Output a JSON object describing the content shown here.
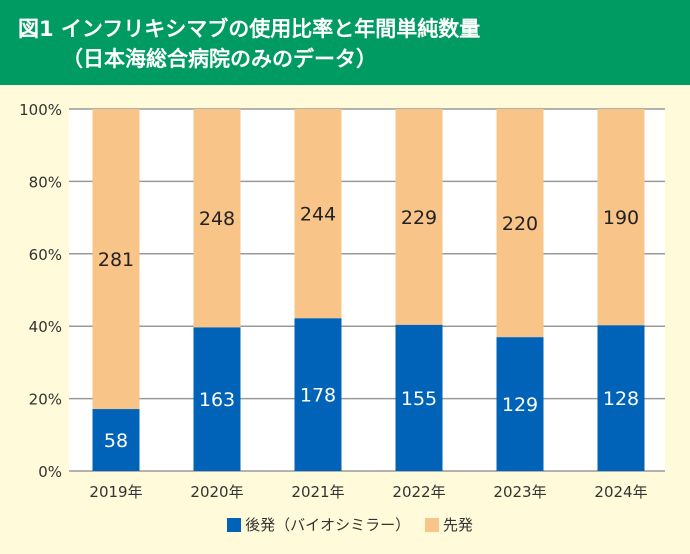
{
  "header": {
    "title_line1": "図1 インフリキシマブの使用比率と年間単純数量",
    "title_line2": "（日本海総合病院のみのデータ）"
  },
  "chart_data": {
    "type": "bar",
    "stacked": "percent",
    "title": "図1 インフリキシマブの使用比率と年間単純数量（日本海総合病院のみのデータ）",
    "categories": [
      "2019年",
      "2020年",
      "2021年",
      "2022年",
      "2023年",
      "2024年"
    ],
    "series": [
      {
        "name": "後発（バイオシミラー）",
        "color": "#0063b8",
        "values": [
          58,
          163,
          178,
          155,
          129,
          128
        ]
      },
      {
        "name": "先発",
        "color": "#f8c487",
        "values": [
          281,
          248,
          244,
          229,
          220,
          190
        ]
      }
    ],
    "yticks": [
      "0%",
      "20%",
      "40%",
      "60%",
      "80%",
      "100%"
    ],
    "ylim": [
      0,
      100
    ],
    "grid": true,
    "legend": "bottom"
  }
}
